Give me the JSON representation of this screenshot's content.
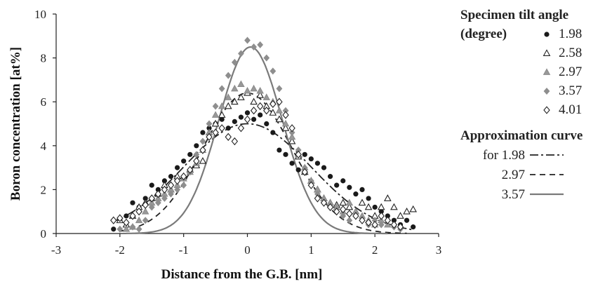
{
  "chart_data": {
    "type": "scatter",
    "xlabel": "Distance from the G.B. [nm]",
    "ylabel": "Boron concentration [at%]",
    "xlim": [
      -3,
      3
    ],
    "ylim": [
      0,
      10
    ],
    "xticks": [
      "-3",
      "-2",
      "-1",
      "0",
      "1",
      "2",
      "3"
    ],
    "yticks": [
      "0",
      "2",
      "4",
      "6",
      "8",
      "10"
    ],
    "legend_title": "Specimen tilt angle",
    "legend_title_units": "(degree)",
    "approx_title": "Approximation curve",
    "approx_prefix": "for",
    "series": [
      {
        "name": "1.98",
        "marker": "filled-circle",
        "color": "#222222",
        "points": [
          [
            -2.1,
            0.2
          ],
          [
            -2.0,
            0.6
          ],
          [
            -1.9,
            0.8
          ],
          [
            -1.8,
            1.4
          ],
          [
            -1.7,
            1.2
          ],
          [
            -1.6,
            1.6
          ],
          [
            -1.5,
            2.2
          ],
          [
            -1.4,
            2.0
          ],
          [
            -1.3,
            2.4
          ],
          [
            -1.2,
            2.6
          ],
          [
            -1.1,
            3.0
          ],
          [
            -1.0,
            3.3
          ],
          [
            -0.9,
            3.6
          ],
          [
            -0.8,
            4.0
          ],
          [
            -0.7,
            4.6
          ],
          [
            -0.6,
            4.8
          ],
          [
            -0.5,
            5.0
          ],
          [
            -0.4,
            5.2
          ],
          [
            -0.3,
            4.8
          ],
          [
            -0.2,
            5.1
          ],
          [
            -0.1,
            5.3
          ],
          [
            0.0,
            5.5
          ],
          [
            0.1,
            5.2
          ],
          [
            0.2,
            5.4
          ],
          [
            0.3,
            5.0
          ],
          [
            0.4,
            4.6
          ],
          [
            0.5,
            3.8
          ],
          [
            0.6,
            3.6
          ],
          [
            0.7,
            3.2
          ],
          [
            0.8,
            2.9
          ],
          [
            0.9,
            3.6
          ],
          [
            1.0,
            3.4
          ],
          [
            1.1,
            3.2
          ],
          [
            1.2,
            3.0
          ],
          [
            1.3,
            2.6
          ],
          [
            1.4,
            2.2
          ],
          [
            1.5,
            2.4
          ],
          [
            1.6,
            2.1
          ],
          [
            1.7,
            1.8
          ],
          [
            1.8,
            2.0
          ],
          [
            1.9,
            1.6
          ],
          [
            2.0,
            1.2
          ],
          [
            2.1,
            1.0
          ],
          [
            2.2,
            0.8
          ],
          [
            2.3,
            0.6
          ],
          [
            2.4,
            0.4
          ],
          [
            2.5,
            0.6
          ],
          [
            2.6,
            0.3
          ]
        ]
      },
      {
        "name": "2.58",
        "marker": "open-triangle",
        "color": "#222222",
        "points": [
          [
            -2.0,
            0.6
          ],
          [
            -1.9,
            0.4
          ],
          [
            -1.8,
            0.8
          ],
          [
            -1.7,
            1.2
          ],
          [
            -1.6,
            1.4
          ],
          [
            -1.5,
            1.6
          ],
          [
            -1.4,
            1.8
          ],
          [
            -1.3,
            2.2
          ],
          [
            -1.2,
            2.0
          ],
          [
            -1.1,
            2.6
          ],
          [
            -1.0,
            2.6
          ],
          [
            -0.9,
            2.9
          ],
          [
            -0.8,
            3.1
          ],
          [
            -0.7,
            3.3
          ],
          [
            -0.6,
            4.6
          ],
          [
            -0.5,
            5.0
          ],
          [
            -0.4,
            5.4
          ],
          [
            -0.3,
            5.8
          ],
          [
            -0.2,
            6.0
          ],
          [
            -0.1,
            6.2
          ],
          [
            0.0,
            6.4
          ],
          [
            0.1,
            6.0
          ],
          [
            0.2,
            6.3
          ],
          [
            0.3,
            5.8
          ],
          [
            0.4,
            5.5
          ],
          [
            0.5,
            5.2
          ],
          [
            0.6,
            4.8
          ],
          [
            0.7,
            4.2
          ],
          [
            0.8,
            3.5
          ],
          [
            0.9,
            2.8
          ],
          [
            1.0,
            2.4
          ],
          [
            1.1,
            2.0
          ],
          [
            1.2,
            1.6
          ],
          [
            1.3,
            1.4
          ],
          [
            1.4,
            1.3
          ],
          [
            1.5,
            1.4
          ],
          [
            1.6,
            1.2
          ],
          [
            1.7,
            1.0
          ],
          [
            1.8,
            1.4
          ],
          [
            1.9,
            1.2
          ],
          [
            2.0,
            0.8
          ],
          [
            2.1,
            1.2
          ],
          [
            2.2,
            1.6
          ],
          [
            2.3,
            1.2
          ],
          [
            2.4,
            0.8
          ],
          [
            2.5,
            1.0
          ],
          [
            2.6,
            1.1
          ]
        ]
      },
      {
        "name": "2.97",
        "marker": "gray-triangle",
        "color": "#8a8a8a",
        "points": [
          [
            -1.9,
            0.2
          ],
          [
            -1.8,
            0.3
          ],
          [
            -1.7,
            0.6
          ],
          [
            -1.6,
            1.0
          ],
          [
            -1.5,
            1.4
          ],
          [
            -1.4,
            1.6
          ],
          [
            -1.3,
            1.8
          ],
          [
            -1.2,
            2.0
          ],
          [
            -1.1,
            2.2
          ],
          [
            -1.0,
            2.5
          ],
          [
            -0.9,
            2.8
          ],
          [
            -0.8,
            3.2
          ],
          [
            -0.7,
            3.8
          ],
          [
            -0.6,
            4.6
          ],
          [
            -0.5,
            5.4
          ],
          [
            -0.4,
            5.8
          ],
          [
            -0.3,
            6.2
          ],
          [
            -0.2,
            6.6
          ],
          [
            -0.1,
            6.8
          ],
          [
            0.0,
            6.5
          ],
          [
            0.1,
            6.6
          ],
          [
            0.2,
            6.5
          ],
          [
            0.3,
            6.2
          ],
          [
            0.4,
            6.0
          ],
          [
            0.5,
            5.6
          ],
          [
            0.6,
            5.0
          ],
          [
            0.7,
            4.4
          ],
          [
            0.8,
            3.6
          ],
          [
            0.9,
            3.0
          ],
          [
            1.0,
            2.4
          ],
          [
            1.1,
            2.0
          ],
          [
            1.2,
            1.6
          ],
          [
            1.3,
            1.4
          ],
          [
            1.4,
            1.2
          ],
          [
            1.5,
            1.0
          ],
          [
            1.6,
            1.4
          ],
          [
            1.7,
            1.0
          ],
          [
            1.8,
            0.8
          ],
          [
            1.9,
            0.6
          ],
          [
            2.0,
            0.4
          ],
          [
            2.1,
            0.6
          ],
          [
            2.2,
            0.4
          ]
        ]
      },
      {
        "name": "3.57",
        "marker": "gray-diamond",
        "color": "#8a8a8a",
        "points": [
          [
            -2.0,
            0.2
          ],
          [
            -1.8,
            0.3
          ],
          [
            -1.7,
            0.2
          ],
          [
            -1.6,
            0.6
          ],
          [
            -1.5,
            1.2
          ],
          [
            -1.4,
            1.4
          ],
          [
            -1.3,
            1.6
          ],
          [
            -1.2,
            1.8
          ],
          [
            -1.1,
            2.0
          ],
          [
            -1.0,
            2.2
          ],
          [
            -0.9,
            2.8
          ],
          [
            -0.8,
            3.6
          ],
          [
            -0.7,
            4.2
          ],
          [
            -0.6,
            5.0
          ],
          [
            -0.5,
            5.8
          ],
          [
            -0.4,
            6.6
          ],
          [
            -0.3,
            7.2
          ],
          [
            -0.2,
            7.8
          ],
          [
            -0.1,
            8.2
          ],
          [
            0.0,
            8.8
          ],
          [
            0.1,
            8.5
          ],
          [
            0.2,
            8.6
          ],
          [
            0.3,
            8.0
          ],
          [
            0.4,
            7.4
          ],
          [
            0.5,
            6.6
          ],
          [
            0.6,
            5.6
          ],
          [
            0.7,
            4.6
          ],
          [
            0.8,
            3.8
          ],
          [
            0.9,
            3.0
          ],
          [
            1.0,
            2.4
          ],
          [
            1.1,
            1.8
          ],
          [
            1.2,
            1.4
          ],
          [
            1.3,
            1.2
          ],
          [
            1.4,
            1.0
          ],
          [
            1.5,
            0.8
          ],
          [
            1.6,
            0.6
          ],
          [
            1.7,
            0.8
          ],
          [
            1.8,
            0.6
          ],
          [
            1.9,
            0.4
          ],
          [
            2.0,
            0.6
          ],
          [
            2.1,
            0.4
          ],
          [
            2.2,
            0.6
          ],
          [
            2.3,
            0.3
          ],
          [
            2.4,
            0.2
          ]
        ]
      },
      {
        "name": "4.01",
        "marker": "open-diamond",
        "color": "#222222",
        "points": [
          [
            -2.1,
            0.6
          ],
          [
            -2.0,
            0.7
          ],
          [
            -1.9,
            0.5
          ],
          [
            -1.8,
            0.8
          ],
          [
            -1.7,
            1.0
          ],
          [
            -1.6,
            1.3
          ],
          [
            -1.5,
            1.6
          ],
          [
            -1.4,
            1.8
          ],
          [
            -1.3,
            2.0
          ],
          [
            -1.2,
            2.2
          ],
          [
            -1.1,
            2.4
          ],
          [
            -1.0,
            2.6
          ],
          [
            -0.9,
            2.9
          ],
          [
            -0.8,
            3.3
          ],
          [
            -0.7,
            3.8
          ],
          [
            -0.6,
            4.4
          ],
          [
            -0.5,
            4.6
          ],
          [
            -0.4,
            4.8
          ],
          [
            -0.3,
            4.4
          ],
          [
            -0.2,
            4.2
          ],
          [
            -0.1,
            4.8
          ],
          [
            0.0,
            5.2
          ],
          [
            0.1,
            5.6
          ],
          [
            0.2,
            5.8
          ],
          [
            0.3,
            5.6
          ],
          [
            0.4,
            5.9
          ],
          [
            0.5,
            6.0
          ],
          [
            0.6,
            5.4
          ],
          [
            0.7,
            4.8
          ],
          [
            0.8,
            3.6
          ],
          [
            0.9,
            2.8
          ],
          [
            1.0,
            2.2
          ],
          [
            1.1,
            1.6
          ],
          [
            1.2,
            1.4
          ],
          [
            1.3,
            1.2
          ],
          [
            1.4,
            1.0
          ],
          [
            1.5,
            1.1
          ],
          [
            1.6,
            0.9
          ],
          [
            1.7,
            0.8
          ],
          [
            1.8,
            0.6
          ],
          [
            1.9,
            0.5
          ],
          [
            2.0,
            0.4
          ],
          [
            2.1,
            0.8
          ],
          [
            2.2,
            0.6
          ],
          [
            2.3,
            0.4
          ],
          [
            2.4,
            0.3
          ]
        ]
      }
    ],
    "approximation_curves": [
      {
        "name": "1.98",
        "style": "dash-dot",
        "color": "#222222",
        "peak": 5.0,
        "center": 0.0,
        "sigma": 1.0,
        "range": [
          -2.1,
          2.6
        ]
      },
      {
        "name": "2.97",
        "style": "dashed",
        "color": "#222222",
        "peak": 6.4,
        "center": 0.0,
        "sigma": 0.7,
        "range": [
          -2.0,
          2.5
        ]
      },
      {
        "name": "3.57",
        "style": "solid",
        "color": "#7a7a7a",
        "peak": 8.5,
        "center": 0.05,
        "sigma": 0.5,
        "range": [
          -1.9,
          2.2
        ]
      }
    ]
  }
}
